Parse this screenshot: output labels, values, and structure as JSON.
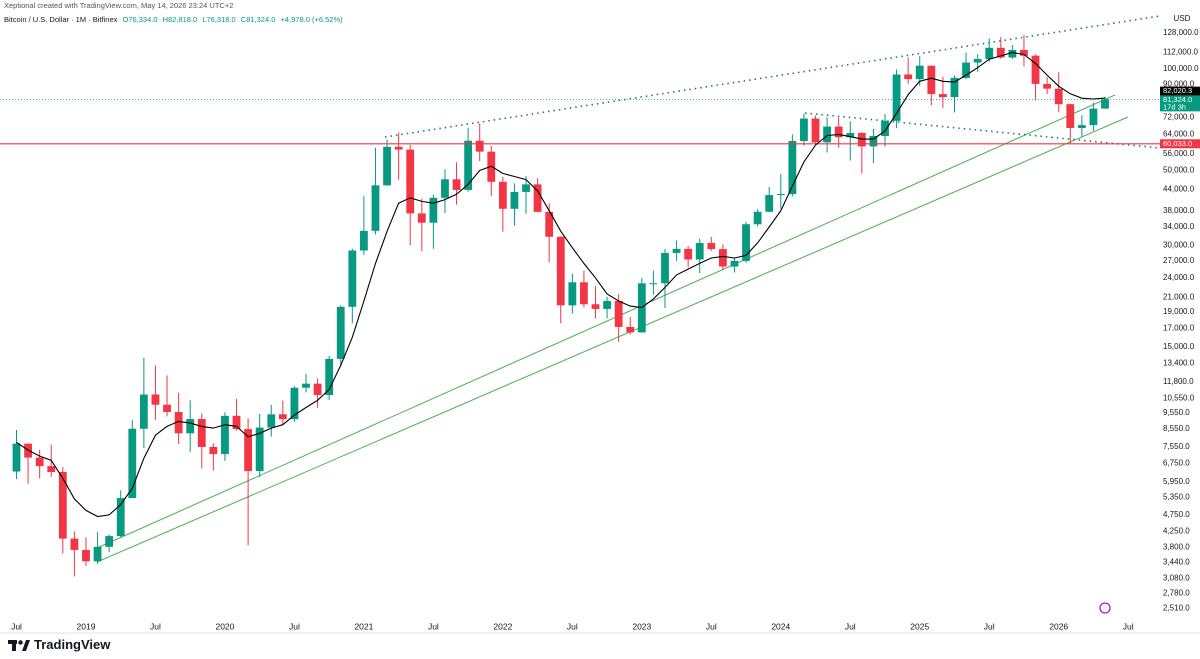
{
  "header": {
    "credit": "Xeptional created with TradingView.com, May 14, 2026 23:24 UTC+2",
    "symbol": "Bitcoin / U.S. Dollar · 1M · Bitfinex",
    "ohlc": [
      "O76,334.0",
      "H82,818.0",
      "L76,318.0",
      "C81,324.0"
    ],
    "change": "+4,978.0 (+6.52%)"
  },
  "footer": "TradingView",
  "chart_data": {
    "type": "candlestick",
    "log_scale": true,
    "grid": false,
    "y_axis_label": "USD",
    "up_color": "#089981",
    "down_color": "#f23645",
    "categories": [
      "Jul",
      null,
      null,
      null,
      null,
      null,
      "2019",
      null,
      null,
      null,
      null,
      null,
      "Jul",
      null,
      null,
      null,
      null,
      null,
      "2020",
      null,
      null,
      null,
      null,
      null,
      "Jul",
      null,
      null,
      null,
      null,
      null,
      "2021",
      null,
      null,
      null,
      null,
      null,
      "Jul",
      null,
      null,
      null,
      null,
      null,
      "2022",
      null,
      null,
      null,
      null,
      null,
      "Jul",
      null,
      null,
      null,
      null,
      null,
      "2023",
      null,
      null,
      null,
      null,
      null,
      "Jul",
      null,
      null,
      null,
      null,
      null,
      "2024",
      null,
      null,
      null,
      null,
      null,
      "Jul",
      null,
      null,
      null,
      null,
      null,
      "2025",
      null,
      null,
      null,
      null,
      null,
      "Jul",
      null,
      null,
      null,
      null,
      null,
      "2026",
      null,
      null,
      null,
      null,
      null,
      "Jul"
    ],
    "open": [
      6390,
      7730,
      7030,
      6630,
      6370,
      4040,
      3740,
      3460,
      3820,
      4110,
      5330,
      8560,
      10820,
      10090,
      9600,
      8300,
      9150,
      7560,
      7200,
      9350,
      8540,
      6410,
      8630,
      9450,
      9140,
      11330,
      11650,
      10780,
      13800,
      19700,
      28950,
      33100,
      45200,
      58800,
      57700,
      37300,
      35000,
      41500,
      47100,
      43800,
      61300,
      56900,
      46300,
      38500,
      43200,
      45500,
      37700,
      31800,
      19900,
      23300,
      20050,
      19420,
      20500,
      17170,
      16540,
      23130,
      23140,
      28470,
      29270,
      27220,
      30480,
      29230,
      25940,
      26960,
      34640,
      37720,
      42280,
      42580,
      61180,
      71330,
      60640,
      67530,
      62770,
      64620,
      58970,
      63330,
      70220,
      96400,
      93400,
      102400,
      84350,
      82550,
      94200,
      104600,
      107150,
      115700,
      108250,
      114050,
      109600,
      90400,
      87500,
      78700,
      66900,
      68200,
      76334,
      null,
      null
    ],
    "high": [
      8490,
      7750,
      7420,
      7680,
      6590,
      4240,
      4080,
      4220,
      4150,
      5620,
      9100,
      13900,
      13200,
      12330,
      10950,
      10400,
      9510,
      7750,
      9580,
      10500,
      9200,
      9470,
      10070,
      10380,
      11450,
      12470,
      12080,
      14100,
      19900,
      29300,
      41950,
      58400,
      61800,
      64900,
      59600,
      41300,
      42400,
      50500,
      52900,
      67000,
      69000,
      59100,
      47900,
      45800,
      48200,
      47400,
      40000,
      31900,
      24700,
      25200,
      22700,
      21100,
      21480,
      18400,
      23950,
      25250,
      29200,
      31000,
      29850,
      31400,
      31800,
      30200,
      27500,
      35200,
      38400,
      44700,
      48900,
      64000,
      73800,
      72800,
      71950,
      71950,
      70000,
      65100,
      66500,
      73600,
      99800,
      108300,
      109300,
      102500,
      95000,
      95800,
      111900,
      110600,
      123200,
      124500,
      117900,
      126200,
      110600,
      94600,
      97900,
      79000,
      73000,
      79500,
      82818,
      null,
      null
    ],
    "low": [
      6070,
      5880,
      6100,
      6170,
      3650,
      3120,
      3350,
      3400,
      3680,
      4080,
      5330,
      7500,
      9090,
      9320,
      7710,
      7300,
      6520,
      6430,
      6870,
      8450,
      3860,
      6160,
      8110,
      8840,
      8990,
      10980,
      9880,
      10420,
      13200,
      17600,
      28100,
      32300,
      45000,
      47000,
      30000,
      28800,
      29300,
      37400,
      39600,
      43300,
      53300,
      42000,
      32900,
      34300,
      37200,
      37600,
      26700,
      17600,
      18800,
      19600,
      18200,
      18200,
      15500,
      16300,
      16500,
      21400,
      19550,
      26950,
      25800,
      24800,
      28900,
      25300,
      24900,
      26600,
      34100,
      37600,
      38500,
      41900,
      59300,
      59600,
      56550,
      58450,
      53500,
      49000,
      52600,
      58900,
      66800,
      90500,
      89200,
      78200,
      76600,
      74400,
      93300,
      98200,
      105100,
      107300,
      107300,
      102000,
      80600,
      84400,
      74500,
      60033,
      63000,
      65500,
      76318,
      null,
      null
    ],
    "close": [
      7730,
      7030,
      6630,
      6370,
      4040,
      3740,
      3460,
      3820,
      4110,
      5330,
      8560,
      10820,
      10090,
      9600,
      8300,
      9150,
      7560,
      7200,
      9350,
      8540,
      6410,
      8630,
      9450,
      9140,
      11330,
      11650,
      10780,
      13800,
      19700,
      28950,
      33100,
      45200,
      58800,
      57700,
      37300,
      35000,
      41500,
      47100,
      43800,
      61300,
      56900,
      46300,
      38500,
      43200,
      45500,
      37700,
      31800,
      19900,
      23300,
      20050,
      19420,
      20500,
      17170,
      16540,
      23130,
      23140,
      28470,
      29270,
      27220,
      30480,
      29230,
      25940,
      26960,
      34640,
      37720,
      42280,
      42580,
      61180,
      71330,
      60640,
      67530,
      62770,
      64620,
      58970,
      63330,
      70220,
      96400,
      93400,
      102400,
      84350,
      82550,
      94200,
      104600,
      107150,
      115700,
      108250,
      114050,
      109600,
      90400,
      87500,
      78700,
      66900,
      68200,
      76346,
      81324,
      null,
      null
    ],
    "last_price_label": "81,324.0",
    "countdown": "17d 3h",
    "ma": {
      "color": "#000000",
      "values": [
        7800,
        7400,
        7100,
        6900,
        6100,
        5300,
        4900,
        4700,
        4750,
        5100,
        5700,
        7000,
        8200,
        8700,
        9000,
        8900,
        8700,
        8600,
        8800,
        8700,
        8100,
        8300,
        8600,
        8800,
        9400,
        9900,
        10400,
        11200,
        13200,
        16000,
        20500,
        26500,
        33000,
        40000,
        41500,
        40500,
        40000,
        41000,
        42500,
        45500,
        50000,
        51500,
        49000,
        48000,
        47000,
        43500,
        38000,
        33000,
        29500,
        26500,
        24000,
        21500,
        20500,
        19800,
        19600,
        20800,
        22500,
        24500,
        25500,
        26500,
        27500,
        27800,
        27500,
        28000,
        30500,
        34000,
        38000,
        45000,
        53000,
        59500,
        63500,
        64000,
        63000,
        62000,
        62000,
        65500,
        74000,
        84000,
        92000,
        94000,
        92000,
        91500,
        96000,
        101000,
        107000,
        109500,
        112000,
        110500,
        104000,
        96000,
        89000,
        84500,
        82000,
        81500,
        82020.3,
        null,
        null
      ],
      "last_label": "82,020.3"
    },
    "hline": {
      "value": 60033,
      "label": "60,033.0",
      "color": "#f23645"
    },
    "ylim": [
      2285,
      160400
    ],
    "yticks": [
      {
        "value": 128000,
        "label": "128,000.0"
      },
      {
        "value": 112000,
        "label": "112,000.0"
      },
      {
        "value": 100000,
        "label": "100,000.0"
      },
      {
        "value": 90000,
        "label": "90,000.0"
      },
      {
        "value": 72000,
        "label": "72,000.0"
      },
      {
        "value": 64000,
        "label": "64,000.0"
      },
      {
        "value": 56000,
        "label": "56,000.0"
      },
      {
        "value": 50000,
        "label": "50,000.0"
      },
      {
        "value": 44000,
        "label": "44,000.0"
      },
      {
        "value": 38000,
        "label": "38,000.0"
      },
      {
        "value": 34000,
        "label": "34,000.0"
      },
      {
        "value": 30000,
        "label": "30,000.0"
      },
      {
        "value": 27000,
        "label": "27,000.0"
      },
      {
        "value": 24000,
        "label": "24,000.0"
      },
      {
        "value": 21000,
        "label": "21,000.0"
      },
      {
        "value": 19000,
        "label": "19,000.0"
      },
      {
        "value": 17000,
        "label": "17,000.0"
      },
      {
        "value": 15000,
        "label": "15,000.0"
      },
      {
        "value": 13400,
        "label": "13,400.0"
      },
      {
        "value": 11800,
        "label": "11,800.0"
      },
      {
        "value": 10550,
        "label": "10,550.0"
      },
      {
        "value": 9550,
        "label": "9,550.0"
      },
      {
        "value": 8550,
        "label": "8,550.0"
      },
      {
        "value": 7550,
        "label": "7,550.0"
      },
      {
        "value": 6750,
        "label": "6,750.0"
      },
      {
        "value": 5950,
        "label": "5,950.0"
      },
      {
        "value": 5350,
        "label": "5,350.0"
      },
      {
        "value": 4750,
        "label": "4,750.0"
      },
      {
        "value": 4250,
        "label": "4,250.0"
      },
      {
        "value": 3800,
        "label": "3,800.0"
      },
      {
        "value": 3440,
        "label": "3,440.0"
      },
      {
        "value": 3080,
        "label": "3,080.0"
      },
      {
        "value": 2780,
        "label": "2,780.0"
      },
      {
        "value": 2510,
        "label": "2,510.0"
      }
    ]
  }
}
